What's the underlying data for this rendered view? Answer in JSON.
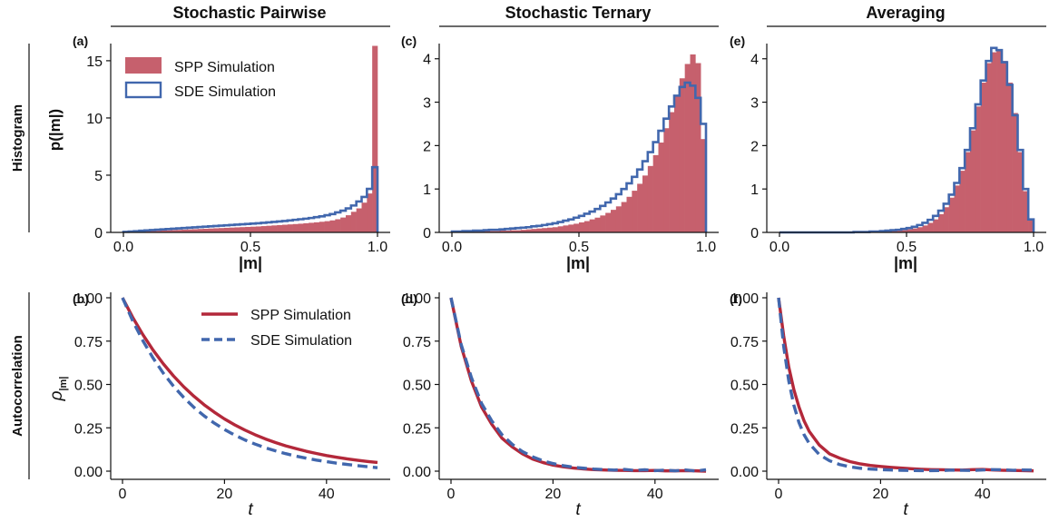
{
  "columns": [
    "Stochastic Pairwise",
    "Stochastic Ternary",
    "Averaging"
  ],
  "rows": [
    "Histogram",
    "Autocorrelation"
  ],
  "panel_labels": [
    "(a)",
    "(b)",
    "(c)",
    "(d)",
    "(e)",
    "(f)"
  ],
  "labels": {
    "hist_ylabel": "p(|m|)",
    "hist_xlabel": "|m|",
    "ac_ylabel_sym": "ρ",
    "ac_ylabel_sub": "|m|",
    "ac_xlabel": "t"
  },
  "colors": {
    "spp": "#c6606d",
    "spp_line": "#b3283a",
    "sde": "#4167ad"
  },
  "chart_data": [
    {
      "type": "bar",
      "panel": "(a)",
      "xlim": [
        0,
        1
      ],
      "ylim": [
        0,
        16.5
      ],
      "xticks": [
        "0.0",
        "0.5",
        "1.0"
      ],
      "yticks": [
        "0",
        "5",
        "10",
        "15"
      ],
      "bins": 48,
      "series": [
        {
          "name": "SPP Simulation",
          "values": [
            0.02,
            0.04,
            0.06,
            0.08,
            0.1,
            0.12,
            0.14,
            0.16,
            0.18,
            0.2,
            0.22,
            0.24,
            0.26,
            0.28,
            0.3,
            0.32,
            0.34,
            0.36,
            0.38,
            0.4,
            0.42,
            0.44,
            0.46,
            0.48,
            0.5,
            0.52,
            0.55,
            0.58,
            0.61,
            0.64,
            0.67,
            0.7,
            0.73,
            0.76,
            0.8,
            0.84,
            0.88,
            0.93,
            0.98,
            1.05,
            1.15,
            1.3,
            1.5,
            1.8,
            2.1,
            2.6,
            3.4,
            16.3
          ]
        },
        {
          "name": "SDE Simulation",
          "values": [
            0.05,
            0.08,
            0.11,
            0.14,
            0.17,
            0.2,
            0.23,
            0.26,
            0.29,
            0.32,
            0.35,
            0.38,
            0.41,
            0.44,
            0.47,
            0.5,
            0.53,
            0.56,
            0.59,
            0.62,
            0.65,
            0.68,
            0.71,
            0.74,
            0.77,
            0.8,
            0.84,
            0.88,
            0.92,
            0.96,
            1.0,
            1.05,
            1.1,
            1.15,
            1.2,
            1.26,
            1.33,
            1.4,
            1.5,
            1.6,
            1.75,
            1.9,
            2.1,
            2.35,
            2.7,
            3.1,
            3.8,
            5.7
          ]
        }
      ]
    },
    {
      "type": "bar",
      "panel": "(c)",
      "xlim": [
        0,
        1
      ],
      "ylim": [
        0,
        4.35
      ],
      "xticks": [
        "0.0",
        "0.5",
        "1.0"
      ],
      "yticks": [
        "0",
        "1",
        "2",
        "3",
        "4"
      ],
      "bins": 48,
      "series": [
        {
          "name": "SPP Simulation",
          "values": [
            0.01,
            0.01,
            0.01,
            0.02,
            0.02,
            0.02,
            0.03,
            0.03,
            0.03,
            0.04,
            0.04,
            0.05,
            0.05,
            0.06,
            0.07,
            0.08,
            0.09,
            0.1,
            0.11,
            0.12,
            0.14,
            0.16,
            0.18,
            0.2,
            0.23,
            0.26,
            0.3,
            0.34,
            0.39,
            0.45,
            0.52,
            0.6,
            0.7,
            0.82,
            0.96,
            1.12,
            1.31,
            1.53,
            1.78,
            2.07,
            2.4,
            2.77,
            3.15,
            3.55,
            3.88,
            4.1,
            3.9,
            2.15
          ]
        },
        {
          "name": "SDE Simulation",
          "values": [
            0.02,
            0.02,
            0.03,
            0.03,
            0.04,
            0.04,
            0.05,
            0.06,
            0.06,
            0.07,
            0.08,
            0.09,
            0.1,
            0.11,
            0.12,
            0.14,
            0.15,
            0.17,
            0.19,
            0.21,
            0.24,
            0.27,
            0.3,
            0.34,
            0.38,
            0.43,
            0.48,
            0.54,
            0.61,
            0.69,
            0.78,
            0.88,
            1.0,
            1.13,
            1.28,
            1.45,
            1.64,
            1.85,
            2.08,
            2.34,
            2.62,
            2.9,
            3.15,
            3.35,
            3.45,
            3.38,
            3.1,
            2.5
          ]
        }
      ]
    },
    {
      "type": "bar",
      "panel": "(e)",
      "xlim": [
        0,
        1
      ],
      "ylim": [
        0,
        4.35
      ],
      "xticks": [
        "0.0",
        "0.5",
        "1.0"
      ],
      "yticks": [
        "0",
        "1",
        "2",
        "3",
        "4"
      ],
      "bins": 48,
      "series": [
        {
          "name": "SPP Simulation",
          "values": [
            0,
            0,
            0,
            0,
            0,
            0,
            0,
            0,
            0,
            0,
            0,
            0,
            0,
            0,
            0,
            0.01,
            0.01,
            0.01,
            0.01,
            0.02,
            0.02,
            0.03,
            0.04,
            0.05,
            0.07,
            0.09,
            0.12,
            0.16,
            0.22,
            0.3,
            0.42,
            0.58,
            0.8,
            1.08,
            1.42,
            1.85,
            2.35,
            2.9,
            3.45,
            3.9,
            4.15,
            4.18,
            3.95,
            3.45,
            2.75,
            1.85,
            0.95,
            0.3
          ]
        },
        {
          "name": "SDE Simulation",
          "values": [
            0,
            0,
            0,
            0,
            0,
            0,
            0,
            0,
            0,
            0,
            0,
            0,
            0,
            0,
            0.01,
            0.01,
            0.01,
            0.02,
            0.02,
            0.03,
            0.04,
            0.05,
            0.06,
            0.08,
            0.1,
            0.13,
            0.17,
            0.22,
            0.29,
            0.38,
            0.5,
            0.66,
            0.87,
            1.14,
            1.48,
            1.9,
            2.4,
            2.95,
            3.5,
            3.95,
            4.25,
            4.2,
            3.92,
            3.4,
            2.7,
            1.9,
            1.0,
            0.3
          ]
        }
      ]
    },
    {
      "type": "line",
      "panel": "(b)",
      "xlim": [
        0,
        50
      ],
      "ylim": [
        0,
        1
      ],
      "xticks": [
        "0",
        "20",
        "40"
      ],
      "yticks": [
        "0.00",
        "0.25",
        "0.50",
        "0.75",
        "1.00"
      ],
      "x": [
        0,
        2,
        4,
        6,
        8,
        10,
        12,
        14,
        16,
        18,
        20,
        22,
        24,
        26,
        28,
        30,
        32,
        34,
        36,
        38,
        40,
        42,
        44,
        46,
        48,
        50
      ],
      "series": [
        {
          "name": "SPP Simulation",
          "values": [
            1.0,
            0.887,
            0.787,
            0.698,
            0.619,
            0.549,
            0.487,
            0.432,
            0.383,
            0.34,
            0.301,
            0.267,
            0.237,
            0.21,
            0.186,
            0.165,
            0.146,
            0.13,
            0.115,
            0.102,
            0.09,
            0.08,
            0.071,
            0.063,
            0.056,
            0.05
          ]
        },
        {
          "name": "SDE Simulation",
          "values": [
            1.0,
            0.867,
            0.752,
            0.652,
            0.565,
            0.49,
            0.425,
            0.368,
            0.319,
            0.277,
            0.24,
            0.208,
            0.18,
            0.156,
            0.135,
            0.117,
            0.101,
            0.087,
            0.075,
            0.064,
            0.055,
            0.046,
            0.039,
            0.032,
            0.026,
            0.02
          ]
        }
      ]
    },
    {
      "type": "line",
      "panel": "(d)",
      "xlim": [
        0,
        50
      ],
      "ylim": [
        0,
        1
      ],
      "xticks": [
        "0",
        "20",
        "40"
      ],
      "yticks": [
        "0.00",
        "0.25",
        "0.50",
        "0.75",
        "1.00"
      ],
      "x": [
        0,
        2,
        4,
        6,
        8,
        10,
        12,
        14,
        16,
        18,
        20,
        22,
        24,
        26,
        28,
        30,
        32,
        34,
        36,
        38,
        40,
        42,
        44,
        46,
        48,
        50
      ],
      "series": [
        {
          "name": "SPP Simulation",
          "values": [
            1.0,
            0.72,
            0.52,
            0.37,
            0.27,
            0.19,
            0.14,
            0.1,
            0.07,
            0.05,
            0.035,
            0.025,
            0.018,
            0.013,
            0.009,
            0.007,
            0.005,
            0.004,
            0.003,
            0.003,
            0.004,
            0.002,
            0.002,
            0.003,
            0.002,
            0.0
          ]
        },
        {
          "name": "SDE Simulation",
          "values": [
            1.0,
            0.73,
            0.54,
            0.39,
            0.29,
            0.21,
            0.155,
            0.113,
            0.083,
            0.06,
            0.044,
            0.032,
            0.023,
            0.017,
            0.012,
            0.009,
            0.006,
            0.01,
            0.004,
            0.008,
            0.003,
            0.006,
            0.002,
            0.007,
            0.001,
            0.008
          ]
        }
      ]
    },
    {
      "type": "line",
      "panel": "(f)",
      "xlim": [
        0,
        50
      ],
      "ylim": [
        0,
        1
      ],
      "xticks": [
        "0",
        "20",
        "40"
      ],
      "yticks": [
        "0.00",
        "0.25",
        "0.50",
        "0.75",
        "1.00"
      ],
      "x": [
        0,
        1,
        2,
        3,
        4,
        5,
        6,
        8,
        10,
        12,
        14,
        16,
        18,
        20,
        22,
        24,
        26,
        28,
        30,
        32,
        34,
        36,
        38,
        40,
        42,
        44,
        46,
        48,
        50
      ],
      "series": [
        {
          "name": "SPP Simulation",
          "values": [
            1.0,
            0.78,
            0.6,
            0.47,
            0.37,
            0.29,
            0.23,
            0.15,
            0.1,
            0.075,
            0.055,
            0.042,
            0.033,
            0.027,
            0.022,
            0.018,
            0.014,
            0.011,
            0.009,
            0.008,
            0.007,
            0.006,
            0.009,
            0.01,
            0.007,
            0.005,
            0.004,
            0.003,
            0.002
          ]
        },
        {
          "name": "SDE Simulation",
          "values": [
            1.0,
            0.72,
            0.52,
            0.38,
            0.28,
            0.21,
            0.16,
            0.095,
            0.06,
            0.038,
            0.025,
            0.017,
            0.012,
            0.009,
            0.007,
            0.005,
            0.004,
            0.003,
            0.003,
            0.004,
            0.006,
            0.005,
            0.004,
            0.007,
            0.009,
            0.008,
            0.005,
            0.007,
            0.006
          ]
        }
      ]
    }
  ]
}
